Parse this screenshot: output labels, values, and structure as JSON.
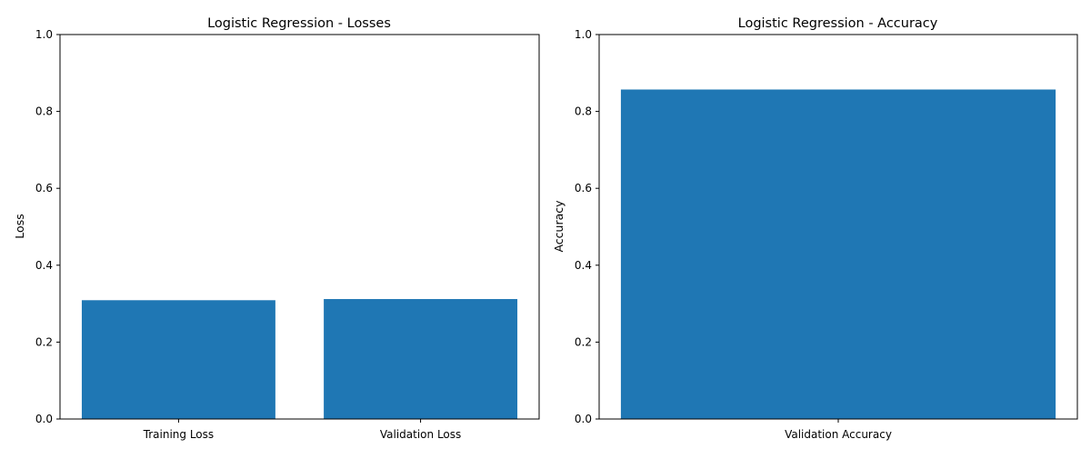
{
  "colors": {
    "bar": "#1f77b4",
    "axis": "#000000",
    "background": "#ffffff"
  },
  "chart_data": [
    {
      "type": "bar",
      "title": "Logistic Regression - Losses",
      "xlabel": "",
      "ylabel": "Loss",
      "categories": [
        "Training Loss",
        "Validation Loss"
      ],
      "values": [
        0.309,
        0.312
      ],
      "ylim": [
        0,
        1
      ],
      "yticks": [
        "0.0",
        "0.2",
        "0.4",
        "0.6",
        "0.8",
        "1.0"
      ],
      "grid": false,
      "legend": "none"
    },
    {
      "type": "bar",
      "title": "Logistic Regression - Accuracy",
      "xlabel": "",
      "ylabel": "Accuracy",
      "categories": [
        "Validation Accuracy"
      ],
      "values": [
        0.857
      ],
      "ylim": [
        0,
        1
      ],
      "yticks": [
        "0.0",
        "0.2",
        "0.4",
        "0.6",
        "0.8",
        "1.0"
      ],
      "grid": false,
      "legend": "none"
    }
  ]
}
